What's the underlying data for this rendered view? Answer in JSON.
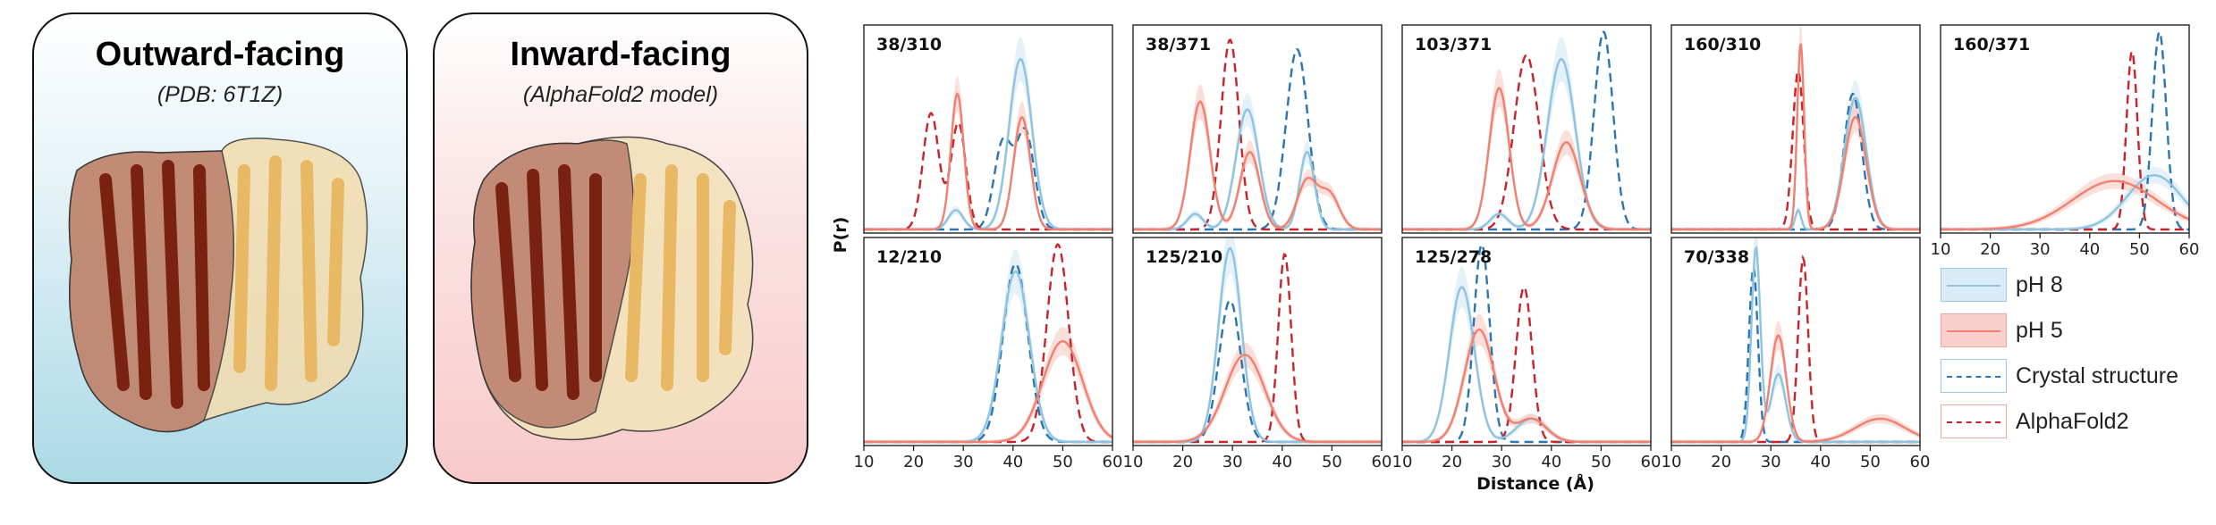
{
  "structures": {
    "outward": {
      "title": "Outward-facing",
      "subtitle": "(PDB: 6T1Z)"
    },
    "inward": {
      "title": "Inward-facing",
      "subtitle": "(AlphaFold2 model)"
    }
  },
  "colors": {
    "ph8": "#8fc3e0",
    "ph8_fill": "#cfe6f4",
    "ph5": "#f08070",
    "ph5_fill": "#f6c4be",
    "crystal": "#2a75b3",
    "alphafold": "#c8222b",
    "domain_dark": "#8b2a12",
    "domain_light": "#f2c77a"
  },
  "legend": {
    "ph8": "pH 8",
    "ph5": "pH 5",
    "crystal": "Crystal structure",
    "alphafold": "AlphaFold2"
  },
  "chart_data": {
    "type": "line",
    "xlabel": "Distance (Å)",
    "ylabel": "P(r)",
    "xlim": [
      10,
      60
    ],
    "xticks": [
      10,
      20,
      30,
      40,
      50,
      60
    ],
    "grid": false,
    "legend_position": "right",
    "panels": [
      {
        "label": "38/310",
        "ph8": [
          [
            28.5,
            0.1,
            1.5
          ],
          [
            41.5,
            0.88,
            2.3
          ]
        ],
        "ph5": [
          [
            28.8,
            0.7,
            1.3
          ],
          [
            41.8,
            0.58,
            1.7
          ]
        ],
        "crystal": [
          [
            38,
            0.45,
            1.8
          ],
          [
            42.5,
            0.5,
            1.8
          ]
        ],
        "alphafold": [
          [
            23.5,
            0.6,
            1.6
          ],
          [
            29,
            0.55,
            1.5
          ]
        ]
      },
      {
        "label": "38/371",
        "ph8": [
          [
            22.5,
            0.08,
            1.6
          ],
          [
            33,
            0.62,
            2.3
          ],
          [
            45,
            0.4,
            1.5
          ]
        ],
        "ph5": [
          [
            23.5,
            0.66,
            2.0
          ],
          [
            33.5,
            0.4,
            2.0
          ],
          [
            45,
            0.25,
            2.0
          ],
          [
            49.5,
            0.18,
            2.0
          ]
        ],
        "crystal": [
          [
            43,
            0.93,
            2.2
          ]
        ],
        "alphafold": [
          [
            29.5,
            0.98,
            1.8
          ]
        ]
      },
      {
        "label": "103/371",
        "ph8": [
          [
            29.5,
            0.08,
            1.8
          ],
          [
            42,
            0.88,
            2.8
          ]
        ],
        "ph5": [
          [
            29.5,
            0.73,
            2.0
          ],
          [
            43,
            0.45,
            2.8
          ]
        ],
        "crystal": [
          [
            50.5,
            1.02,
            1.9
          ]
        ],
        "alphafold": [
          [
            35,
            0.9,
            2.5
          ]
        ]
      },
      {
        "label": "160/310",
        "ph8": [
          [
            35.5,
            0.1,
            0.6
          ],
          [
            47,
            0.68,
            2.2
          ]
        ],
        "ph5": [
          [
            36,
            0.96,
            0.7
          ],
          [
            47,
            0.58,
            2.2
          ]
        ],
        "crystal": [
          [
            46.5,
            0.7,
            1.8
          ]
        ],
        "alphafold": [
          [
            35.5,
            0.82,
            1.1
          ]
        ]
      },
      {
        "label": "160/371",
        "ph8": [
          [
            53,
            0.28,
            5.5
          ]
        ],
        "ph5": [
          [
            45,
            0.25,
            8.5
          ]
        ],
        "crystal": [
          [
            54,
            1.02,
            1.4
          ]
        ],
        "alphafold": [
          [
            48.5,
            0.92,
            1.1
          ]
        ]
      },
      {
        "label": "12/210",
        "ph8": [
          [
            40.5,
            0.88,
            2.8
          ]
        ],
        "ph5": [
          [
            50,
            0.52,
            4.0
          ]
        ],
        "crystal": [
          [
            40.5,
            0.92,
            2.5
          ]
        ],
        "alphafold": [
          [
            49,
            1.02,
            2.2
          ]
        ]
      },
      {
        "label": "125/210",
        "ph8": [
          [
            29.5,
            1.0,
            2.3
          ]
        ],
        "ph5": [
          [
            32.5,
            0.45,
            4.0
          ]
        ],
        "crystal": [
          [
            29.5,
            0.73,
            2.2
          ]
        ],
        "alphafold": [
          [
            40.5,
            0.97,
            1.3
          ]
        ]
      },
      {
        "label": "125/278",
        "ph8": [
          [
            22,
            0.8,
            2.5
          ],
          [
            36,
            0.12,
            3.0
          ]
        ],
        "ph5": [
          [
            25.5,
            0.58,
            3.0
          ],
          [
            36,
            0.12,
            3.0
          ]
        ],
        "crystal": [
          [
            26,
            1.02,
            1.6
          ]
        ],
        "alphafold": [
          [
            34.5,
            0.8,
            1.6
          ]
        ]
      },
      {
        "label": "70/338",
        "ph8": [
          [
            27,
            1.0,
            0.9
          ],
          [
            31.5,
            0.35,
            1.5
          ]
        ],
        "ph5": [
          [
            31.5,
            0.55,
            1.6
          ],
          [
            52,
            0.12,
            5.0
          ]
        ],
        "crystal": [
          [
            26.5,
            0.9,
            0.9
          ]
        ],
        "alphafold": [
          [
            36.5,
            0.95,
            1.0
          ]
        ]
      }
    ]
  }
}
